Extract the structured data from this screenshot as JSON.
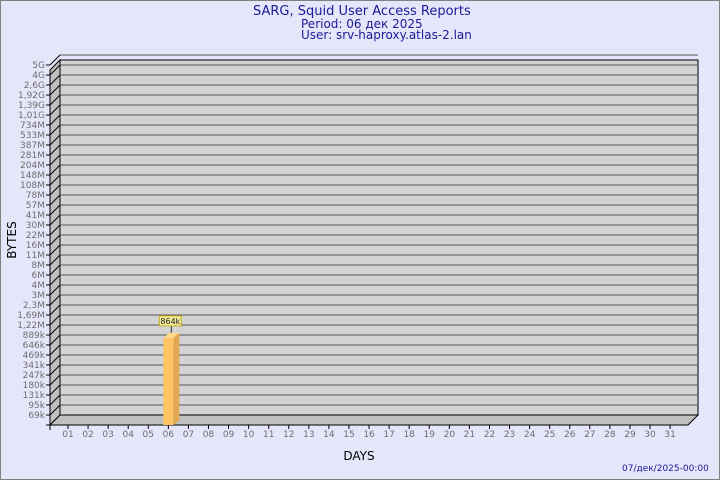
{
  "header": {
    "title": "SARG, Squid User Access Reports",
    "period": "Period: 06 дек 2025",
    "user": "User: srv-haproxy.atlas-2.lan"
  },
  "footer": {
    "generated": "07/дек/2025-00:00"
  },
  "colors": {
    "background": "#e6e6fa",
    "wall": "#d3d3d3",
    "side": "#c0c0c0",
    "bar_front": "#fec466",
    "bar_side": "#e0a850",
    "title": "#1a1a9a",
    "label_box": "#f5eb9a"
  },
  "chart_data": {
    "type": "bar",
    "title": "SARG, Squid User Access Reports",
    "xlabel": "DAYS",
    "ylabel": "BYTES",
    "yscale": "log",
    "grid": true,
    "style": "3d",
    "y_ticks": [
      "5G",
      "4G",
      "2,6G",
      "1,92G",
      "1,39G",
      "1,01G",
      "734M",
      "533M",
      "387M",
      "281M",
      "204M",
      "148M",
      "108M",
      "78M",
      "57M",
      "41M",
      "30M",
      "22M",
      "16M",
      "11M",
      "8M",
      "6M",
      "4M",
      "3M",
      "2,3M",
      "1,69M",
      "1,22M",
      "889k",
      "646k",
      "469k",
      "341k",
      "247k",
      "180k",
      "131k",
      "95k",
      "69k"
    ],
    "categories": [
      "01",
      "02",
      "03",
      "04",
      "05",
      "06",
      "07",
      "08",
      "09",
      "10",
      "11",
      "12",
      "13",
      "14",
      "15",
      "16",
      "17",
      "18",
      "19",
      "20",
      "21",
      "22",
      "23",
      "24",
      "25",
      "26",
      "27",
      "28",
      "29",
      "30",
      "31"
    ],
    "bars": [
      {
        "category": "06",
        "value": 864000,
        "label": "864k"
      }
    ]
  }
}
